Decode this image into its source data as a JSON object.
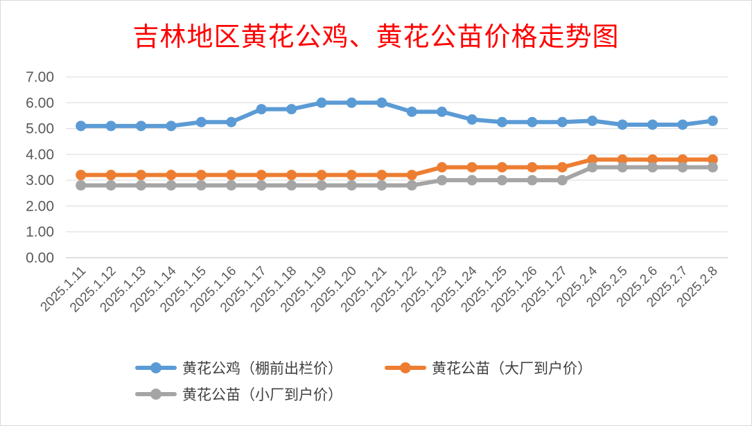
{
  "chart_data": {
    "type": "line",
    "title": "吉林地区黄花公鸡、黄花公苗价格走势图",
    "categories": [
      "2025.1.11",
      "2025.1.12",
      "2025.1.13",
      "2025.1.14",
      "2025.1.15",
      "2025.1.16",
      "2025.1.17",
      "2025.1.18",
      "2025.1.19",
      "2025.1.20",
      "2025.1.21",
      "2025.1.22",
      "2025.1.23",
      "2025.1.24",
      "2025.1.25",
      "2025.1.26",
      "2025.1.27",
      "2025.2.4",
      "2025.2.5",
      "2025.2.6",
      "2025.2.7",
      "2025.2.8"
    ],
    "y_ticks": [
      "0.00",
      "1.00",
      "2.00",
      "3.00",
      "4.00",
      "5.00",
      "6.00",
      "7.00"
    ],
    "ylim": [
      0,
      7
    ],
    "grid": true,
    "legend_position": "bottom",
    "series": [
      {
        "name": "黄花公鸡（棚前出栏价）",
        "color": "#5b9bd5",
        "values": [
          5.1,
          5.1,
          5.1,
          5.1,
          5.25,
          5.25,
          5.75,
          5.75,
          6.0,
          6.0,
          6.0,
          5.65,
          5.65,
          5.35,
          5.25,
          5.25,
          5.25,
          5.3,
          5.15,
          5.15,
          5.15,
          5.3
        ]
      },
      {
        "name": "黄花公苗（大厂到户价）",
        "color": "#ed7d31",
        "values": [
          3.2,
          3.2,
          3.2,
          3.2,
          3.2,
          3.2,
          3.2,
          3.2,
          3.2,
          3.2,
          3.2,
          3.2,
          3.5,
          3.5,
          3.5,
          3.5,
          3.5,
          3.8,
          3.8,
          3.8,
          3.8,
          3.8
        ]
      },
      {
        "name": "黄花公苗（小厂到户价）",
        "color": "#a5a5a5",
        "values": [
          2.8,
          2.8,
          2.8,
          2.8,
          2.8,
          2.8,
          2.8,
          2.8,
          2.8,
          2.8,
          2.8,
          2.8,
          3.0,
          3.0,
          3.0,
          3.0,
          3.0,
          3.5,
          3.5,
          3.5,
          3.5,
          3.5
        ]
      }
    ]
  }
}
